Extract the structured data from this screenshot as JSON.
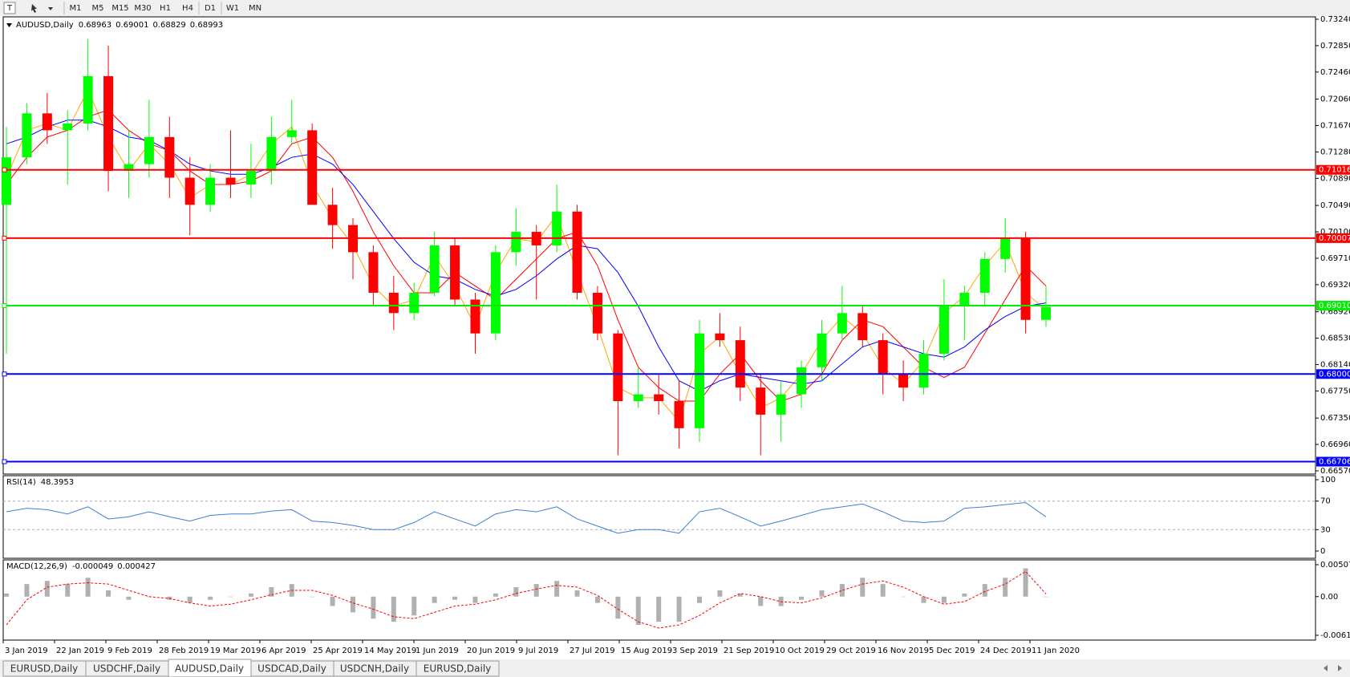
{
  "toolbar": {
    "timeframes": [
      "M1",
      "M5",
      "M15",
      "M30",
      "H1",
      "H4",
      "D1",
      "W1",
      "MN"
    ]
  },
  "tabs": [
    "EURUSD,Daily",
    "USDCHF,Daily",
    "AUDUSD,Daily",
    "USDCAD,Daily",
    "USDCNH,Daily",
    "EURUSD,Daily"
  ],
  "active_tab": 2,
  "date_labels": [
    "3 Jan 2019",
    "22 Jan 2019",
    "9 Feb 2019",
    "28 Feb 2019",
    "19 Mar 2019",
    "6 Apr 2019",
    "25 Apr 2019",
    "14 May 2019",
    "1 Jun 2019",
    "20 Jun 2019",
    "9 Jul 2019",
    "27 Jul 2019",
    "15 Aug 2019",
    "3 Sep 2019",
    "21 Sep 2019",
    "10 Oct 2019",
    "29 Oct 2019",
    "16 Nov 2019",
    "5 Dec 2019",
    "24 Dec 2019",
    "11 Jan 2020"
  ],
  "chart_data": [
    {
      "type": "candlestick",
      "title": "AUDUSD,Daily",
      "header_values": [
        0.68963,
        0.69001,
        0.68829,
        0.68993
      ],
      "up_color": "#00ff00",
      "down_color": "#ff0000",
      "open": [
        0.705,
        0.712,
        0.7185,
        0.716,
        0.717,
        0.724,
        0.71,
        0.711,
        0.715,
        0.709,
        0.705,
        0.709,
        0.708,
        0.71,
        0.715,
        0.716,
        0.705,
        0.702,
        0.698,
        0.692,
        0.689,
        0.692,
        0.699,
        0.691,
        0.686,
        0.698,
        0.701,
        0.699,
        0.704,
        0.692,
        0.686,
        0.676,
        0.677,
        0.676,
        0.672,
        0.686,
        0.685,
        0.678,
        0.674,
        0.677,
        0.681,
        0.686,
        0.689,
        0.685,
        0.68,
        0.678,
        0.683,
        0.69,
        0.692,
        0.697,
        0.7,
        0.688
      ],
      "high": [
        0.7165,
        0.72,
        0.7215,
        0.719,
        0.7295,
        0.7285,
        0.716,
        0.7205,
        0.718,
        0.712,
        0.711,
        0.716,
        0.714,
        0.718,
        0.7205,
        0.717,
        0.7075,
        0.703,
        0.699,
        0.6945,
        0.6935,
        0.701,
        0.7,
        0.692,
        0.699,
        0.7045,
        0.702,
        0.708,
        0.705,
        0.693,
        0.6865,
        0.681,
        0.68,
        0.679,
        0.688,
        0.689,
        0.687,
        0.68,
        0.679,
        0.682,
        0.688,
        0.693,
        0.69,
        0.686,
        0.682,
        0.685,
        0.694,
        0.693,
        0.698,
        0.703,
        0.701,
        0.693
      ],
      "low": [
        0.683,
        0.711,
        0.714,
        0.708,
        0.716,
        0.707,
        0.706,
        0.709,
        0.706,
        0.7005,
        0.704,
        0.706,
        0.706,
        0.708,
        0.714,
        0.705,
        0.6985,
        0.694,
        0.69,
        0.6865,
        0.688,
        0.6915,
        0.69,
        0.683,
        0.685,
        0.696,
        0.691,
        0.698,
        0.691,
        0.685,
        0.668,
        0.675,
        0.674,
        0.669,
        0.67,
        0.684,
        0.676,
        0.668,
        0.67,
        0.675,
        0.679,
        0.685,
        0.684,
        0.677,
        0.676,
        0.677,
        0.682,
        0.685,
        0.69,
        0.695,
        0.686,
        0.687
      ],
      "close": [
        0.712,
        0.7185,
        0.716,
        0.717,
        0.724,
        0.71,
        0.711,
        0.715,
        0.709,
        0.705,
        0.709,
        0.708,
        0.71,
        0.715,
        0.716,
        0.705,
        0.702,
        0.698,
        0.692,
        0.689,
        0.692,
        0.699,
        0.691,
        0.686,
        0.698,
        0.701,
        0.699,
        0.704,
        0.692,
        0.686,
        0.676,
        0.677,
        0.676,
        0.672,
        0.686,
        0.685,
        0.678,
        0.674,
        0.677,
        0.681,
        0.686,
        0.689,
        0.685,
        0.68,
        0.678,
        0.683,
        0.69,
        0.692,
        0.697,
        0.7,
        0.688,
        0.6899
      ],
      "series": [
        {
          "color": "#ffa500",
          "values": [
            0.709,
            0.716,
            0.717,
            0.716,
            0.722,
            0.715,
            0.71,
            0.714,
            0.711,
            0.706,
            0.708,
            0.708,
            0.7095,
            0.714,
            0.7165,
            0.708,
            0.703,
            0.699,
            0.693,
            0.69,
            0.691,
            0.6975,
            0.693,
            0.687,
            0.695,
            0.7,
            0.6995,
            0.7035,
            0.695,
            0.687,
            0.678,
            0.6765,
            0.6765,
            0.673,
            0.683,
            0.6855,
            0.68,
            0.675,
            0.6765,
            0.68,
            0.685,
            0.6885,
            0.686,
            0.681,
            0.6785,
            0.682,
            0.689,
            0.6915,
            0.696,
            0.6995,
            0.692,
            0.6895
          ]
        },
        {
          "color": "#ff0000",
          "values": [
            0.708,
            0.712,
            0.715,
            0.716,
            0.718,
            0.719,
            0.716,
            0.714,
            0.713,
            0.71,
            0.708,
            0.708,
            0.7085,
            0.71,
            0.714,
            0.715,
            0.712,
            0.707,
            0.701,
            0.696,
            0.692,
            0.692,
            0.695,
            0.693,
            0.691,
            0.694,
            0.697,
            0.7,
            0.701,
            0.696,
            0.688,
            0.681,
            0.678,
            0.676,
            0.676,
            0.68,
            0.683,
            0.679,
            0.676,
            0.677,
            0.68,
            0.685,
            0.688,
            0.687,
            0.684,
            0.681,
            0.6795,
            0.681,
            0.686,
            0.691,
            0.696,
            0.693
          ]
        },
        {
          "color": "#0000ff",
          "values": [
            0.714,
            0.715,
            0.7165,
            0.7175,
            0.7175,
            0.7165,
            0.715,
            0.7145,
            0.713,
            0.711,
            0.71,
            0.7095,
            0.7095,
            0.7105,
            0.712,
            0.7125,
            0.711,
            0.708,
            0.704,
            0.7,
            0.6965,
            0.6945,
            0.694,
            0.6925,
            0.6915,
            0.6925,
            0.6945,
            0.697,
            0.699,
            0.6985,
            0.695,
            0.69,
            0.684,
            0.679,
            0.6775,
            0.679,
            0.68,
            0.6795,
            0.679,
            0.6785,
            0.679,
            0.6815,
            0.684,
            0.685,
            0.684,
            0.683,
            0.6825,
            0.684,
            0.6865,
            0.6885,
            0.69,
            0.6905
          ]
        }
      ],
      "levels": [
        {
          "value": 0.71016,
          "color": "#ff0000"
        },
        {
          "value": 0.70007,
          "color": "#ff0000"
        },
        {
          "value": {
            "value": 0.6901,
            "label": "0.69010"
          },
          "color": "#00ee00"
        },
        {
          "value": {
            "value": 0.68,
            "label": "0.68000"
          },
          "color": "#0000ff"
        },
        {
          "value": 0.66706,
          "color": "#0000ff"
        }
      ],
      "ylim": [
        0.6657,
        0.7324
      ],
      "yticks": [
        {
          "value": 0.7324,
          "label": "0.73240"
        },
        {
          "value": 0.7285,
          "label": "0.72850"
        },
        {
          "value": 0.7246,
          "label": "0.72460"
        },
        {
          "value": 0.7206,
          "label": "0.72060"
        },
        {
          "value": 0.7167,
          "label": "0.71670"
        },
        {
          "value": 0.7128,
          "label": "0.71280"
        },
        {
          "value": 0.7089,
          "label": "0.70890"
        },
        {
          "value": 0.7049,
          "label": "0.70490"
        },
        {
          "value": 0.701,
          "label": "0.70100"
        },
        {
          "value": 0.6971,
          "label": "0.69710"
        },
        {
          "value": 0.6932,
          "label": "0.69320"
        },
        {
          "value": 0.6892,
          "label": "0.68920"
        },
        {
          "value": 0.6853,
          "label": "0.68530"
        },
        {
          "value": 0.6814,
          "label": "0.68140"
        },
        {
          "value": 0.6775,
          "label": "0.67750"
        },
        {
          "value": 0.6735,
          "label": "0.67350"
        },
        {
          "value": 0.6696,
          "label": "0.66960"
        },
        {
          "value": 0.6657,
          "label": "0.66570"
        }
      ]
    },
    {
      "type": "line",
      "title": "RSI(14)",
      "header_values": [
        48.3953
      ],
      "color": "#3a7fd5",
      "values": [
        55,
        60,
        58,
        52,
        62,
        45,
        48,
        55,
        48,
        42,
        50,
        52,
        52,
        56,
        58,
        42,
        40,
        36,
        30,
        30,
        40,
        55,
        45,
        35,
        52,
        58,
        55,
        62,
        45,
        35,
        25,
        30,
        30,
        25,
        55,
        60,
        48,
        35,
        42,
        50,
        58,
        62,
        66,
        55,
        42,
        40,
        42,
        60,
        62,
        65,
        68,
        48
      ],
      "levels": [
        70,
        30
      ],
      "ylim": [
        0,
        100
      ],
      "yticks": [
        100,
        70,
        30,
        0
      ]
    },
    {
      "type": "macd",
      "title": "MACD(12,26,9)",
      "header_values": [
        -4.9e-05,
        0.000427
      ],
      "hist_color": "#b0b0b0",
      "signal_color": "#ff0000",
      "values": [
        0.0005,
        0.002,
        0.0025,
        0.002,
        0.003,
        0.001,
        -0.0005,
        0.0,
        -0.0005,
        -0.001,
        -0.0005,
        0.0,
        0.0005,
        0.0015,
        0.002,
        0.0,
        -0.0015,
        -0.0025,
        -0.0035,
        -0.004,
        -0.003,
        -0.001,
        -0.0005,
        -0.001,
        0.0005,
        0.0015,
        0.002,
        0.0025,
        0.001,
        -0.001,
        -0.0035,
        -0.0045,
        -0.004,
        -0.004,
        -0.001,
        0.001,
        0.0005,
        -0.0015,
        -0.0015,
        -0.0005,
        0.001,
        0.002,
        0.003,
        0.002,
        0.0,
        -0.001,
        -0.001,
        0.0005,
        0.002,
        0.003,
        0.0045,
        -4.9e-05
      ],
      "signal": [
        -0.0045,
        -0.0005,
        0.0015,
        0.002,
        0.0022,
        0.002,
        0.001,
        0.0,
        -0.0003,
        -0.001,
        -0.0015,
        -0.0012,
        -0.0005,
        0.0003,
        0.001,
        0.001,
        0.0002,
        -0.001,
        -0.002,
        -0.0032,
        -0.0035,
        -0.0025,
        -0.0015,
        -0.0012,
        -0.0005,
        0.0005,
        0.0012,
        0.0018,
        0.0015,
        0.0002,
        -0.002,
        -0.004,
        -0.005,
        -0.0045,
        -0.003,
        -0.001,
        0.0005,
        0.0,
        -0.0008,
        -0.001,
        -0.0002,
        0.001,
        0.002,
        0.0025,
        0.0015,
        0.0,
        -0.0012,
        -0.0008,
        0.0008,
        0.002,
        0.004,
        0.000427
      ],
      "ylim": [
        -0.006148,
        0.005076
      ],
      "yticks": [
        0.005076,
        {
          "value": 0,
          "label": "0.00"
        },
        -0.006148
      ]
    }
  ]
}
